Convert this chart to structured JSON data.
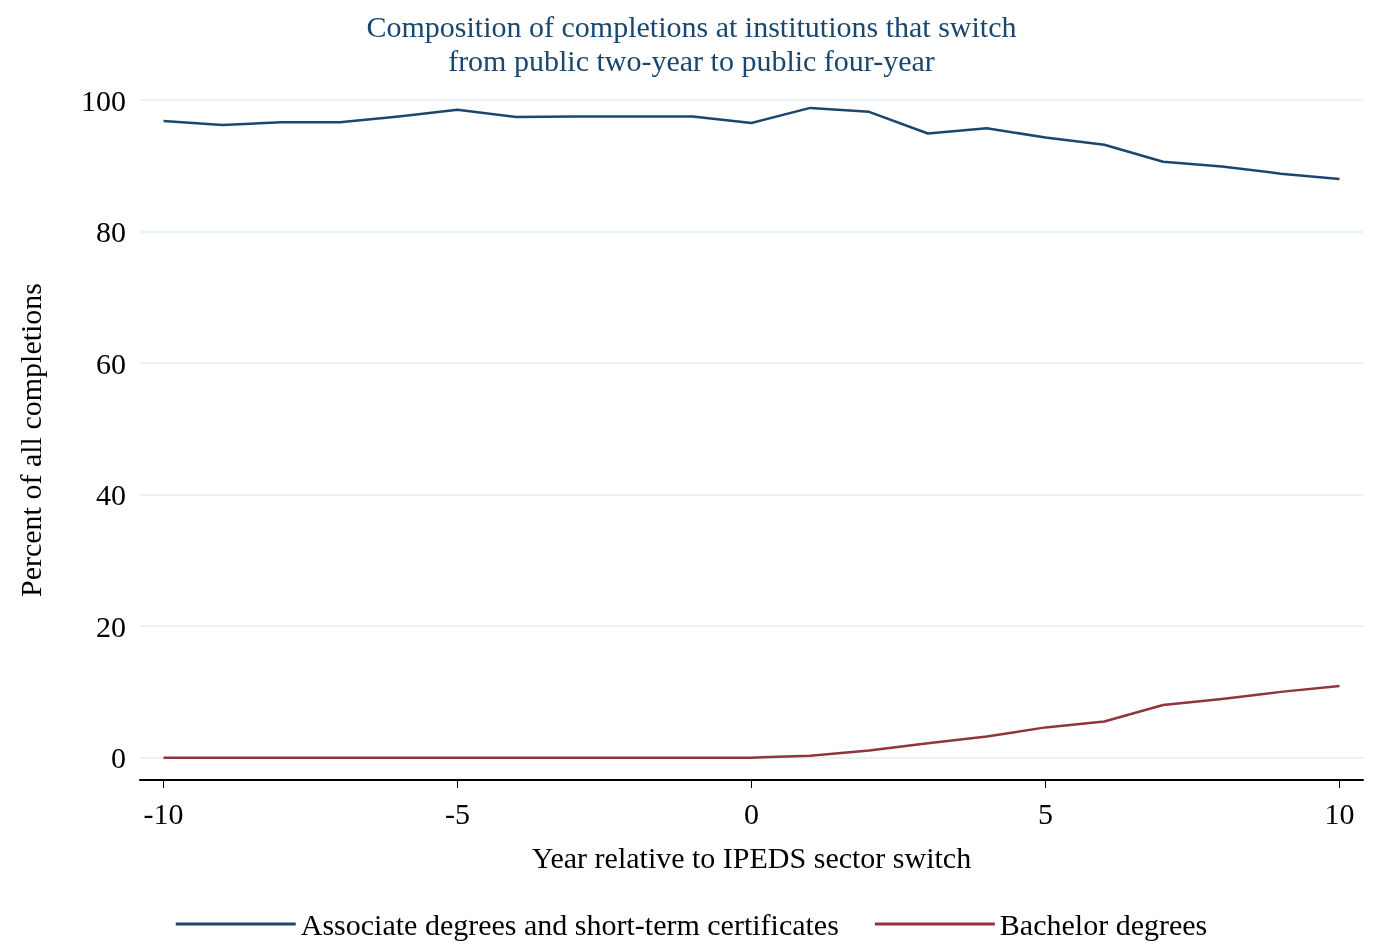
{
  "chart_data": {
    "type": "line",
    "title": "Composition of completions at institutions that switch\nfrom public two-year to public four-year",
    "xlabel": "Year relative to IPEDS sector switch",
    "ylabel": "Percent of all completions",
    "x": [
      -10,
      -9,
      -8,
      -7,
      -6,
      -5,
      -4,
      -3,
      -2,
      -1,
      0,
      1,
      2,
      3,
      4,
      5,
      6,
      7,
      8,
      9,
      10
    ],
    "series": [
      {
        "name": "Associate degrees and short-term certificates",
        "color": "#1a476f",
        "values": [
          96.8,
          96.2,
          96.6,
          96.6,
          97.5,
          98.5,
          97.4,
          97.5,
          97.5,
          97.5,
          96.5,
          98.8,
          98.2,
          94.9,
          95.7,
          94.3,
          93.2,
          90.6,
          89.9,
          88.8,
          88.0
        ]
      },
      {
        "name": "Bachelor degrees",
        "color": "#90353b",
        "values": [
          0,
          0,
          0,
          0,
          0,
          0,
          0,
          0,
          0,
          0,
          0,
          0.3,
          1.1,
          2.2,
          3.2,
          4.6,
          5.5,
          8.0,
          8.9,
          10.0,
          10.9
        ]
      }
    ],
    "xlim": [
      -10.4,
      10.4
    ],
    "xticks": [
      -10,
      -5,
      0,
      5,
      10
    ],
    "ylim": [
      -3.4,
      100
    ],
    "yticks": [
      0,
      20,
      40,
      60,
      80,
      100
    ],
    "grid": "y",
    "legend": "bottom",
    "marker": "none",
    "line_style": "solid"
  }
}
